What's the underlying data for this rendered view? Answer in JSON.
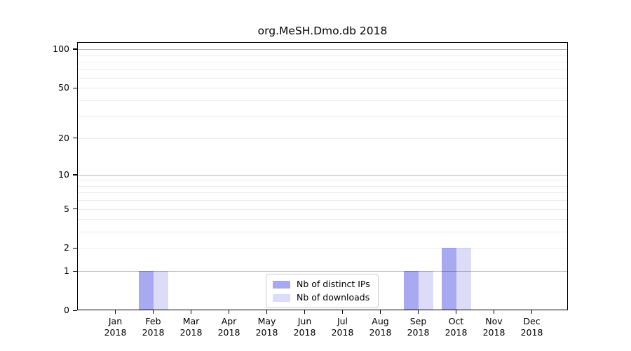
{
  "title": "org.MeSH.Dmo.db 2018",
  "chart_data": {
    "type": "bar",
    "title": "org.MeSH.Dmo.db 2018",
    "categories": [
      "Jan",
      "Feb",
      "Mar",
      "Apr",
      "May",
      "Jun",
      "Jul",
      "Aug",
      "Sep",
      "Oct",
      "Nov",
      "Dec"
    ],
    "year_label": "2018",
    "series": [
      {
        "name": "Nb of distinct IPs",
        "color": "#a9a9f2",
        "values": [
          0,
          1,
          0,
          0,
          0,
          0,
          0,
          0,
          1,
          2,
          0,
          0
        ]
      },
      {
        "name": "Nb of downloads",
        "color": "#dcdcf8",
        "values": [
          0,
          1,
          0,
          0,
          0,
          0,
          0,
          0,
          1,
          2,
          0,
          0
        ]
      }
    ],
    "y_ticks": [
      0,
      1,
      2,
      5,
      10,
      20,
      50,
      100
    ],
    "y_gridlines_major": [
      1,
      10,
      100
    ],
    "y_gridlines_minor": [
      2,
      3,
      4,
      5,
      6,
      7,
      8,
      9,
      20,
      30,
      40,
      50,
      60,
      70,
      80,
      90
    ],
    "scale": "log10(1+x)",
    "ylim": [
      0,
      113
    ],
    "xlabel": "",
    "ylabel": "",
    "grid": true,
    "legend_position": "bottom-center"
  }
}
